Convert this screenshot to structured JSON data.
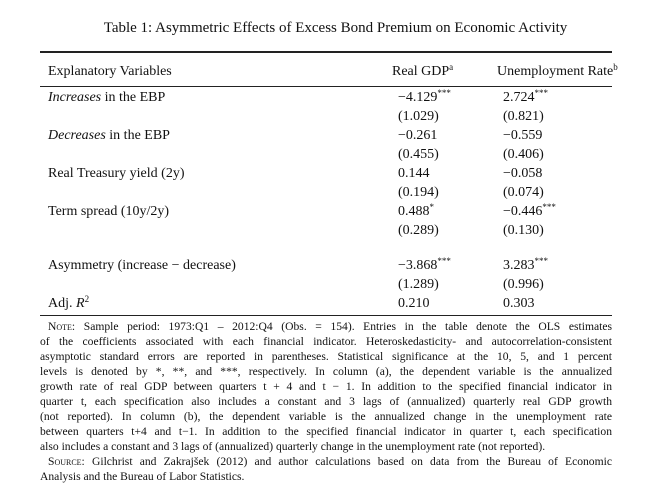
{
  "title": "Table 1: Asymmetric Effects of Excess Bond Premium on Economic Activity",
  "table": {
    "header": {
      "variables": "Explanatory Variables",
      "gdp": "Real GDP",
      "gdp_note": "a",
      "unemp": "Unemployment Rate",
      "unemp_note": "b"
    },
    "rows": [
      {
        "label": {
          "em": "Increases",
          "rest": " in the EBP"
        },
        "gdp": "−4.129",
        "gdp_stars": "***",
        "gdp_se": "(1.029)",
        "unemp": "2.724",
        "unemp_stars": "***",
        "unemp_se": "(0.821)"
      },
      {
        "label": {
          "em": "Decreases",
          "rest": " in the EBP"
        },
        "gdp": "−0.261",
        "gdp_se": "(0.455)",
        "unemp": "−0.559",
        "unemp_se": "(0.406)"
      },
      {
        "label": {
          "text": "Real Treasury yield (2y)"
        },
        "gdp": "0.144",
        "gdp_se": "(0.194)",
        "unemp": "−0.058",
        "unemp_se": "(0.074)"
      },
      {
        "label": {
          "text": "Term spread (10y/2y)"
        },
        "gdp": "0.488",
        "gdp_stars": "*",
        "gdp_se": "(0.289)",
        "unemp": "−0.446",
        "unemp_stars": "***",
        "unemp_se": "(0.130)"
      },
      {
        "label": {
          "text": "Asymmetry (increase − decrease)"
        },
        "gdp": "−3.868",
        "gdp_stars": "***",
        "gdp_se": "(1.289)",
        "unemp": "3.283",
        "unemp_stars": "***",
        "unemp_se": "(0.996)"
      },
      {
        "label": {
          "text": "Adj. ",
          "em": "R",
          "sup": "2"
        },
        "gdp": "0.210",
        "unemp": "0.303"
      }
    ]
  },
  "note": {
    "label": "Note:",
    "lines": [
      "Sample period: 1973:Q1 – 2012:Q4 (Obs. = 154). Entries in the table denote the OLS estimates",
      "of the coefficients associated with each financial indicator. Heteroskedasticity- and autocorrelation-consistent",
      "asymptotic standard errors are reported in parentheses. Statistical significance at the 10, 5, and 1 percent",
      "levels is denoted by *, **, and ***, respectively. In column (a), the dependent variable is the annualized",
      "growth rate of real GDP between quarters t + 4 and t − 1. In addition to the specified financial indicator in",
      "quarter t, each specification also includes a constant and 3 lags of (annualized) quarterly real GDP growth",
      "(not reported). In column (b), the dependent variable is the annualized change in the unemployment rate",
      "between quarters t+4 and t−1. In addition to the specified financial indicator in quarter t, each specification",
      "also includes a constant and 3 lags of (annualized) quarterly change in the unemployment rate (not reported)."
    ]
  },
  "source": {
    "label": "Source:",
    "lines": [
      "Gilchrist and Zakrajšek (2012) and author calculations based on data from the Bureau of Economic",
      "Analysis and the Bureau of Labor Statistics."
    ]
  }
}
